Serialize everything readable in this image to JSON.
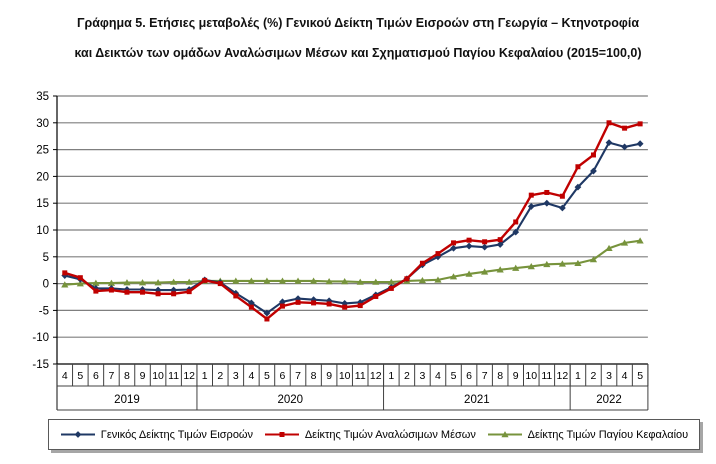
{
  "title": {
    "line1": "Γράφημα 5. Ετήσιες μεταβολές (%) Γενικού Δείκτη Τιμών Εισροών στη Γεωργία – Κτηνοτροφία",
    "line2": "και Δεικτών των ομάδων Αναλώσιμων Μέσων και Σχηματισμού Παγίου Κεφαλαίου (2015=100,0)"
  },
  "chart_data": {
    "type": "line",
    "title": "Γράφημα 5. Ετήσιες μεταβολές (%) Γενικού Δείκτη Τιμών Εισροών στη Γεωργία – Κτηνοτροφία και Δεικτών των ομάδων Αναλώσιμων Μέσων και Σχηματισμού Παγίου Κεφαλαίου (2015=100,0)",
    "ylabel": "",
    "xlabel": "",
    "y_axis": {
      "min": -15,
      "max": 35,
      "step": 5
    },
    "grid": true,
    "legend_position": "bottom",
    "x_groups": [
      {
        "year": "2019",
        "months": [
          "4",
          "5",
          "6",
          "7",
          "8",
          "9",
          "10",
          "11",
          "12"
        ]
      },
      {
        "year": "2020",
        "months": [
          "1",
          "2",
          "3",
          "4",
          "5",
          "6",
          "7",
          "8",
          "9",
          "10",
          "11",
          "12"
        ]
      },
      {
        "year": "2021",
        "months": [
          "1",
          "2",
          "3",
          "4",
          "5",
          "6",
          "7",
          "8",
          "9",
          "10",
          "11",
          "12"
        ]
      },
      {
        "year": "2022",
        "months": [
          "1",
          "2",
          "3",
          "4",
          "5"
        ]
      }
    ],
    "series": [
      {
        "name": "Γενικός Δείκτης Τιμών Εισροών",
        "color": "#1F3864",
        "marker": "diamond",
        "values": [
          1.5,
          0.8,
          -0.9,
          -0.9,
          -1.1,
          -1.1,
          -1.2,
          -1.2,
          -1.1,
          0.7,
          0.2,
          -1.8,
          -3.6,
          -5.5,
          -3.4,
          -2.8,
          -3.0,
          -3.2,
          -3.7,
          -3.5,
          -2.1,
          -0.7,
          0.9,
          3.5,
          5.0,
          6.6,
          7.0,
          6.8,
          7.3,
          9.6,
          14.4,
          15.0,
          14.1,
          18.0,
          21.0,
          26.3,
          25.5,
          26.1
        ]
      },
      {
        "name": "Δείκτης Τιμών Αναλώσιμων Μέσων",
        "color": "#C00000",
        "marker": "square",
        "values": [
          2.0,
          1.1,
          -1.4,
          -1.2,
          -1.6,
          -1.6,
          -1.9,
          -1.9,
          -1.5,
          0.6,
          0.0,
          -2.3,
          -4.4,
          -6.6,
          -4.2,
          -3.5,
          -3.6,
          -3.8,
          -4.4,
          -4.1,
          -2.4,
          -0.9,
          0.9,
          3.8,
          5.6,
          7.6,
          8.1,
          7.8,
          8.2,
          11.5,
          16.5,
          17.0,
          16.3,
          21.8,
          24.0,
          30.0,
          29.0,
          29.8
        ]
      },
      {
        "name": "Δείκτης Τιμών Παγίου Κεφαλαίου",
        "color": "#77933C",
        "marker": "triangle",
        "values": [
          -0.2,
          0.0,
          0.1,
          0.1,
          0.2,
          0.2,
          0.2,
          0.3,
          0.3,
          0.5,
          0.5,
          0.5,
          0.5,
          0.5,
          0.5,
          0.5,
          0.5,
          0.4,
          0.4,
          0.3,
          0.3,
          0.3,
          0.5,
          0.6,
          0.7,
          1.3,
          1.8,
          2.2,
          2.6,
          2.9,
          3.2,
          3.6,
          3.7,
          3.8,
          4.5,
          6.6,
          7.6,
          8.0
        ]
      }
    ]
  },
  "colors": {
    "gridline": "#7f7f7f",
    "axis": "#000000",
    "table_line": "#404040",
    "legend_border": "#595959"
  }
}
